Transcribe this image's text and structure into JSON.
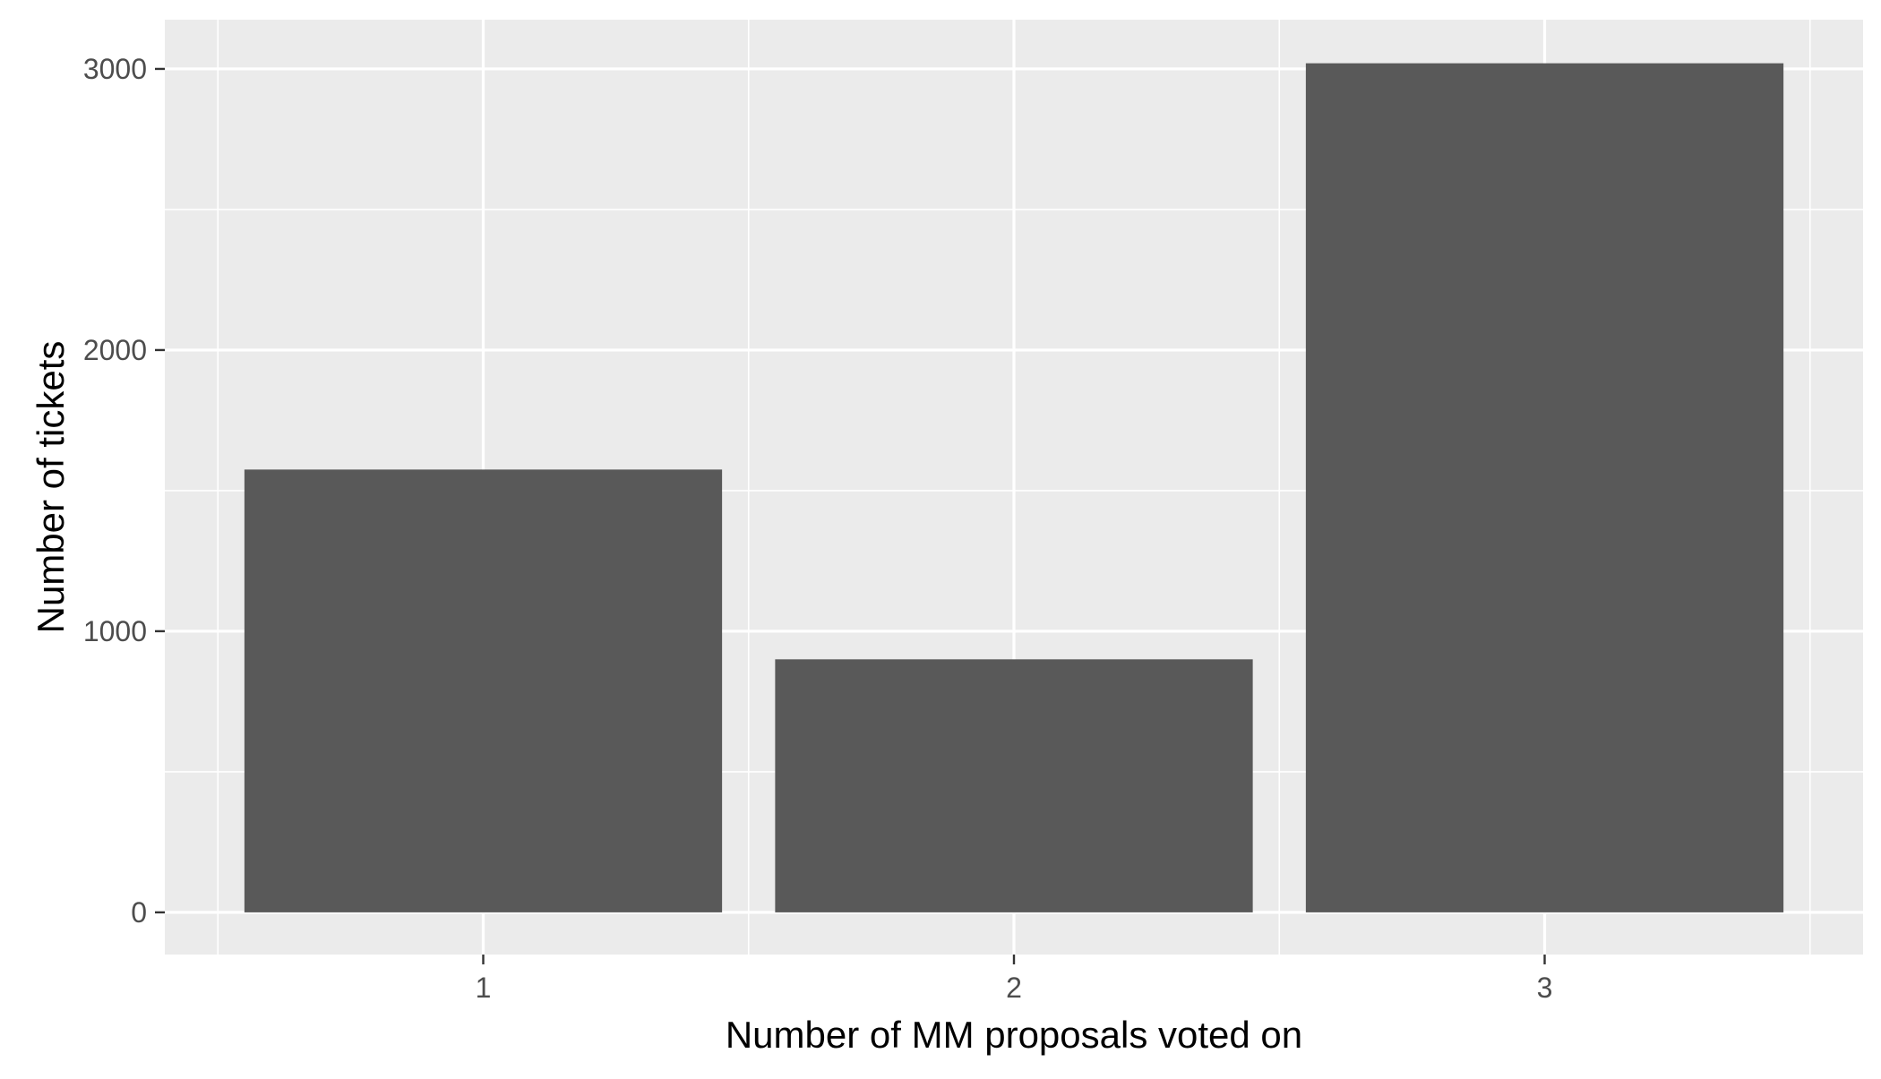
{
  "chart_data": {
    "type": "bar",
    "title": "",
    "xlabel": "Number of MM proposals voted on",
    "ylabel": "Number of tickets",
    "categories": [
      "1",
      "2",
      "3"
    ],
    "values": [
      1575,
      900,
      3020
    ],
    "ylim": [
      -150,
      3175
    ],
    "yticks": [
      0,
      1000,
      2000,
      3000
    ],
    "ytick_labels": [
      "0",
      "1000",
      "2000",
      "3000"
    ],
    "grid": true,
    "legend": "none",
    "colors": {
      "panel_background": "#EBEBEB",
      "gridline": "#FFFFFF",
      "bar_fill": "#595959",
      "tick_text": "#4D4D4D",
      "axis_title": "#000000"
    }
  }
}
